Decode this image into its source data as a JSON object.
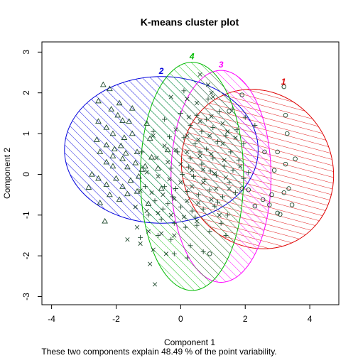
{
  "chart_data": {
    "type": "scatter",
    "title": "K-means cluster plot",
    "xlabel": "Component 1",
    "ylabel": "Component 2",
    "subtitle": "These two components explain 48.49 % of the point variability.",
    "xlim": [
      -4.3,
      4.9
    ],
    "ylim": [
      -3.2,
      3.25
    ],
    "xticks": [
      "-4",
      "-2",
      "0",
      "2",
      "4"
    ],
    "yticks": [
      "-3",
      "-2",
      "-1",
      "0",
      "1",
      "2",
      "3"
    ],
    "grid": false,
    "legend": "none",
    "clusters": [
      {
        "label": "1",
        "color": "#df0000",
        "marker": "circle",
        "ellipse": {
          "cx": 2.38,
          "cy": 0.13,
          "rx": 2.3,
          "ry": 2.0,
          "rotation_deg": -30
        },
        "points": [
          [
            3.2,
            2.15
          ],
          [
            3.25,
            1.45
          ],
          [
            3.3,
            1.0
          ],
          [
            3.0,
            0.55
          ],
          [
            3.25,
            0.25
          ],
          [
            3.55,
            0.38
          ],
          [
            2.6,
            0.55
          ],
          [
            2.9,
            0.1
          ],
          [
            3.35,
            -0.35
          ],
          [
            3.2,
            -0.45
          ],
          [
            2.55,
            -0.62
          ],
          [
            2.3,
            -0.78
          ],
          [
            2.75,
            -0.75
          ],
          [
            3.0,
            -0.95
          ],
          [
            3.45,
            -0.75
          ],
          [
            2.1,
            -0.38
          ],
          [
            2.82,
            -0.5
          ],
          [
            3.08,
            -0.98
          ],
          [
            1.9,
            1.95
          ],
          [
            1.5,
            1.55
          ],
          [
            0.9,
            -1.95
          ],
          [
            1.9,
            -0.35
          ]
        ]
      },
      {
        "label": "2",
        "color": "#0000dd",
        "marker": "triangle",
        "ellipse": {
          "cx": -0.6,
          "cy": 0.6,
          "rx": 3.0,
          "ry": 1.8,
          "rotation_deg": 0
        },
        "points": [
          [
            -2.4,
            2.2
          ],
          [
            -2.2,
            2.1
          ],
          [
            -2.55,
            1.8
          ],
          [
            -2.15,
            1.6
          ],
          [
            -1.9,
            1.75
          ],
          [
            -2.55,
            1.3
          ],
          [
            -2.3,
            1.15
          ],
          [
            -2.1,
            1.0
          ],
          [
            -1.8,
            1.32
          ],
          [
            -1.6,
            1.3
          ],
          [
            -1.5,
            1.0
          ],
          [
            -2.6,
            0.85
          ],
          [
            -2.3,
            0.72
          ],
          [
            -2.05,
            0.62
          ],
          [
            -1.85,
            0.7
          ],
          [
            -1.7,
            0.52
          ],
          [
            -1.35,
            0.55
          ],
          [
            -2.5,
            0.55
          ],
          [
            -2.3,
            0.3
          ],
          [
            -2.1,
            0.2
          ],
          [
            -1.8,
            0.38
          ],
          [
            -1.65,
            0.18
          ],
          [
            -1.4,
            0.28
          ],
          [
            -1.2,
            0.12
          ],
          [
            -2.75,
            0.0
          ],
          [
            -2.55,
            -0.1
          ],
          [
            -2.3,
            -0.25
          ],
          [
            -2.0,
            -0.1
          ],
          [
            -1.8,
            -0.3
          ],
          [
            -1.55,
            -0.15
          ],
          [
            -1.3,
            -0.05
          ],
          [
            -1.1,
            0.2
          ],
          [
            -0.9,
            0.42
          ],
          [
            -0.7,
            0.15
          ],
          [
            -2.85,
            -0.32
          ],
          [
            -2.5,
            -0.7
          ],
          [
            -2.2,
            -0.5
          ],
          [
            -1.9,
            -0.62
          ],
          [
            -1.65,
            -0.48
          ],
          [
            -1.35,
            -0.42
          ],
          [
            -1.95,
            1.45
          ],
          [
            -1.5,
            1.62
          ],
          [
            -1.05,
            1.25
          ],
          [
            -0.95,
            0.88
          ],
          [
            -0.4,
            0.6
          ],
          [
            -0.6,
            -0.35
          ],
          [
            -1.0,
            -0.72
          ],
          [
            -2.35,
            -1.15
          ],
          [
            -2.1,
            0.45
          ],
          [
            -1.75,
            0.9
          ]
        ]
      },
      {
        "label": "3",
        "color": "#ff00ff",
        "marker": "plus",
        "ellipse": {
          "cx": 1.25,
          "cy": -0.05,
          "rx": 1.55,
          "ry": 2.6,
          "rotation_deg": 0
        },
        "points": [
          [
            0.5,
            1.45
          ],
          [
            0.8,
            1.35
          ],
          [
            1.2,
            1.55
          ],
          [
            0.3,
            1.2
          ],
          [
            0.65,
            1.05
          ],
          [
            1.0,
            1.15
          ],
          [
            1.4,
            0.95
          ],
          [
            1.75,
            1.1
          ],
          [
            2.3,
            1.2
          ],
          [
            0.1,
            0.9
          ],
          [
            0.45,
            0.75
          ],
          [
            0.8,
            0.62
          ],
          [
            1.15,
            0.8
          ],
          [
            1.55,
            0.55
          ],
          [
            1.95,
            0.75
          ],
          [
            -0.1,
            0.55
          ],
          [
            0.3,
            0.4
          ],
          [
            0.65,
            0.25
          ],
          [
            1.0,
            0.4
          ],
          [
            1.35,
            0.2
          ],
          [
            1.8,
            0.35
          ],
          [
            2.1,
            0.05
          ],
          [
            -0.3,
            0.15
          ],
          [
            0.05,
            0.0
          ],
          [
            0.4,
            -0.05
          ],
          [
            0.75,
            -0.12
          ],
          [
            1.1,
            -0.02
          ],
          [
            1.5,
            -0.2
          ],
          [
            1.95,
            -0.1
          ],
          [
            -0.5,
            -0.3
          ],
          [
            -0.15,
            -0.35
          ],
          [
            0.2,
            -0.42
          ],
          [
            0.55,
            -0.5
          ],
          [
            0.9,
            -0.38
          ],
          [
            1.3,
            -0.55
          ],
          [
            1.7,
            -0.45
          ],
          [
            -0.8,
            -0.65
          ],
          [
            -0.4,
            -0.72
          ],
          [
            0.0,
            -0.8
          ],
          [
            0.35,
            -0.9
          ],
          [
            0.7,
            -0.85
          ],
          [
            1.05,
            -0.78
          ],
          [
            1.45,
            -1.0
          ],
          [
            -1.0,
            -1.0
          ],
          [
            -0.6,
            -1.1
          ],
          [
            -0.2,
            -1.2
          ],
          [
            0.15,
            -1.3
          ],
          [
            0.5,
            -1.25
          ],
          [
            0.9,
            -1.4
          ],
          [
            -0.7,
            -1.5
          ],
          [
            -0.3,
            -1.6
          ],
          [
            0.3,
            -1.75
          ],
          [
            0.7,
            -1.9
          ],
          [
            -1.1,
            -0.3
          ],
          [
            -1.2,
            0.55
          ],
          [
            -0.85,
            1.05
          ],
          [
            -0.5,
            1.35
          ],
          [
            0.0,
            1.5
          ],
          [
            1.6,
            1.6
          ],
          [
            2.0,
            1.4
          ],
          [
            -1.25,
            -1.55
          ],
          [
            0.1,
            2.05
          ],
          [
            -0.2,
            -1.95
          ],
          [
            0.6,
            0.55
          ],
          [
            1.25,
            -1.2
          ],
          [
            -0.35,
            0.92
          ],
          [
            0.25,
            0.18
          ],
          [
            0.92,
            0.08
          ],
          [
            1.62,
            0.1
          ],
          [
            -0.25,
            -0.55
          ],
          [
            0.45,
            -1.05
          ],
          [
            1.15,
            -0.68
          ],
          [
            -0.55,
            -0.85
          ],
          [
            0.85,
            1.85
          ],
          [
            0.2,
            -2.05
          ],
          [
            1.4,
            -1.5
          ]
        ]
      },
      {
        "label": "4",
        "color": "#00bb00",
        "marker": "cross",
        "ellipse": {
          "cx": 0.35,
          "cy": -0.05,
          "rx": 1.6,
          "ry": 2.8,
          "rotation_deg": 0
        },
        "points": [
          [
            0.6,
            2.45
          ],
          [
            0.85,
            2.2
          ],
          [
            0.2,
            1.85
          ],
          [
            0.5,
            1.75
          ],
          [
            1.0,
            1.9
          ],
          [
            0.25,
            1.4
          ],
          [
            0.6,
            1.3
          ],
          [
            0.95,
            1.42
          ],
          [
            1.3,
            1.25
          ],
          [
            -0.15,
            1.1
          ],
          [
            0.2,
            0.95
          ],
          [
            0.55,
            0.85
          ],
          [
            0.9,
            0.95
          ],
          [
            1.3,
            0.75
          ],
          [
            1.7,
            0.9
          ],
          [
            -0.5,
            0.7
          ],
          [
            -0.15,
            0.6
          ],
          [
            0.2,
            0.55
          ],
          [
            0.6,
            0.45
          ],
          [
            0.95,
            0.5
          ],
          [
            1.35,
            0.35
          ],
          [
            -0.75,
            0.4
          ],
          [
            -0.4,
            0.3
          ],
          [
            0.0,
            0.25
          ],
          [
            0.35,
            0.1
          ],
          [
            0.7,
            0.12
          ],
          [
            1.05,
            0.02
          ],
          [
            1.4,
            -0.08
          ],
          [
            -1.05,
            0.05
          ],
          [
            -0.7,
            -0.05
          ],
          [
            -0.35,
            -0.12
          ],
          [
            0.0,
            -0.2
          ],
          [
            0.35,
            -0.3
          ],
          [
            0.7,
            -0.2
          ],
          [
            1.1,
            -0.35
          ],
          [
            1.5,
            -0.35
          ],
          [
            -1.25,
            -0.4
          ],
          [
            -0.9,
            -0.45
          ],
          [
            -0.55,
            -0.5
          ],
          [
            -0.2,
            -0.6
          ],
          [
            0.2,
            -0.65
          ],
          [
            0.55,
            -0.7
          ],
          [
            0.95,
            -0.62
          ],
          [
            -1.4,
            -0.8
          ],
          [
            -1.05,
            -0.9
          ],
          [
            -0.7,
            -0.95
          ],
          [
            -0.3,
            -1.0
          ],
          [
            0.1,
            -1.05
          ],
          [
            0.5,
            -1.15
          ],
          [
            -1.35,
            -1.3
          ],
          [
            -1.0,
            -1.4
          ],
          [
            -0.6,
            -1.45
          ],
          [
            -0.2,
            -1.5
          ],
          [
            -1.25,
            -1.7
          ],
          [
            -0.85,
            -1.85
          ],
          [
            -0.45,
            -1.95
          ],
          [
            -1.65,
            -1.6
          ],
          [
            -0.95,
            -2.2
          ],
          [
            -0.8,
            -2.7
          ],
          [
            -0.3,
            1.9
          ],
          [
            0.95,
            2.0
          ],
          [
            1.45,
            1.05
          ],
          [
            -0.85,
            0.95
          ],
          [
            1.2,
            -1.0
          ],
          [
            1.85,
            0.2
          ]
        ]
      }
    ]
  }
}
